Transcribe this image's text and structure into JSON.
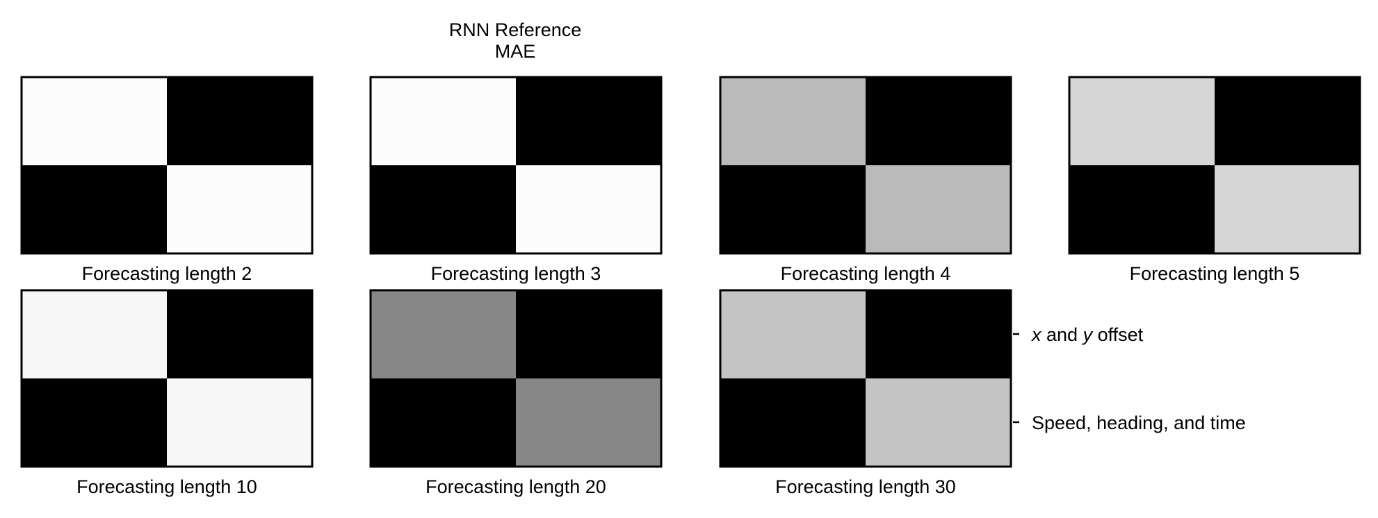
{
  "chart_data": {
    "type": "heatmap",
    "title_lines": [
      "RNN Reference",
      "MAE"
    ],
    "colormap": "gray",
    "ytick_labels": [
      "x and y offset",
      "Speed, heading, and time"
    ],
    "panels": [
      {
        "label": "Forecasting length 2",
        "values": [
          [
            0.99,
            0.0
          ],
          [
            0.0,
            0.99
          ]
        ]
      },
      {
        "label": "Forecasting length 3",
        "values": [
          [
            0.99,
            0.0
          ],
          [
            0.0,
            0.99
          ]
        ]
      },
      {
        "label": "Forecasting length 4",
        "values": [
          [
            0.73,
            0.0
          ],
          [
            0.0,
            0.73
          ]
        ]
      },
      {
        "label": "Forecasting length 5",
        "values": [
          [
            0.84,
            0.0
          ],
          [
            0.0,
            0.84
          ]
        ]
      },
      {
        "label": "Forecasting length 10",
        "values": [
          [
            0.97,
            0.0
          ],
          [
            0.0,
            0.97
          ]
        ]
      },
      {
        "label": "Forecasting length 20",
        "values": [
          [
            0.53,
            0.0
          ],
          [
            0.0,
            0.53
          ]
        ]
      },
      {
        "label": "Forecasting length 30",
        "values": [
          [
            0.77,
            0.0
          ],
          [
            0.0,
            0.77
          ]
        ]
      }
    ]
  }
}
